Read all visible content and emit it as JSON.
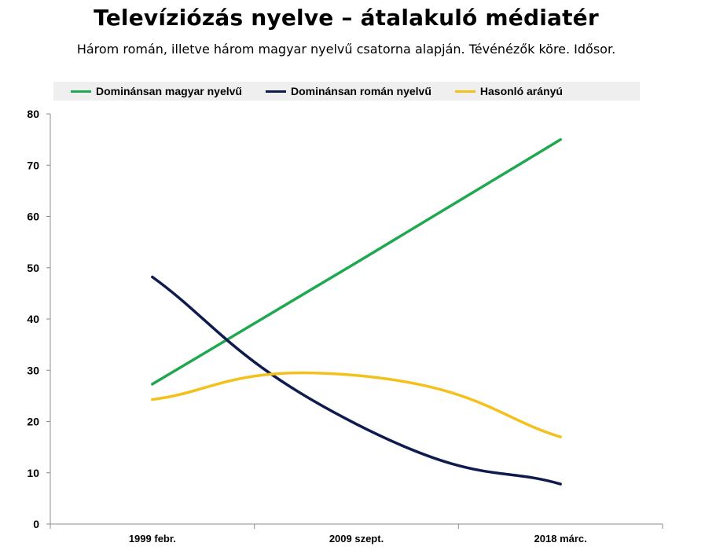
{
  "chart_data": {
    "type": "line",
    "title": "Televíziózás nyelve – átalakuló médiatér",
    "subtitle": "Három román, illetve három magyar nyelvű csatorna alapján. Tévénézők köre. Idősor.",
    "categories": [
      "1999 febr.",
      "2009 szept.",
      "2018 márc."
    ],
    "ylim": [
      0,
      80
    ],
    "yticks": [
      0,
      10,
      20,
      30,
      40,
      50,
      60,
      70,
      80
    ],
    "legend_position": "top",
    "grid": false,
    "series": [
      {
        "name": "Dominánsan magyar nyelvű",
        "color": "#1fa84f",
        "values": [
          27.3,
          51,
          75
        ]
      },
      {
        "name": "Dominánsan román nyelvű",
        "color": "#0d1b4f",
        "values": [
          48.2,
          19.5,
          7.8
        ]
      },
      {
        "name": "Hasonló arányú",
        "color": "#f4c01c",
        "values": [
          24.3,
          29,
          17
        ]
      }
    ]
  }
}
